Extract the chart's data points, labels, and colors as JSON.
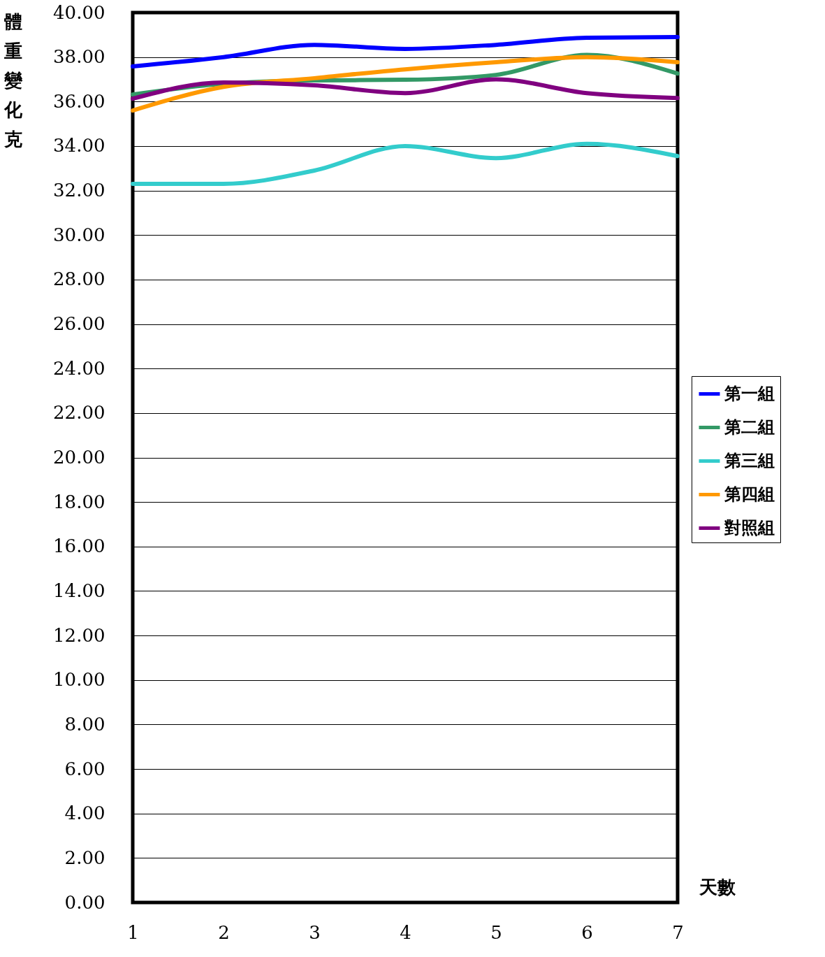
{
  "chart_data": {
    "type": "line",
    "xlabel": "天數",
    "ylabel": "體重變化克",
    "legend": "right",
    "grid": "y",
    "line_style": "solid",
    "marker": "none",
    "x": [
      1,
      2,
      3,
      4,
      5,
      6,
      7
    ],
    "xlim": [
      1,
      7
    ],
    "xticks": [
      1,
      2,
      3,
      4,
      5,
      6,
      7
    ],
    "ylim": [
      0,
      40
    ],
    "yticks": [
      {
        "value": 0,
        "label": "0.00"
      },
      {
        "value": 2,
        "label": "2.00"
      },
      {
        "value": 4,
        "label": "4.00"
      },
      {
        "value": 6,
        "label": "6.00"
      },
      {
        "value": 8,
        "label": "8.00"
      },
      {
        "value": 10,
        "label": "10.00"
      },
      {
        "value": 12,
        "label": "12.00"
      },
      {
        "value": 14,
        "label": "14.00"
      },
      {
        "value": 16,
        "label": "16.00"
      },
      {
        "value": 18,
        "label": "18.00"
      },
      {
        "value": 20,
        "label": "20.00"
      },
      {
        "value": 22,
        "label": "22.00"
      },
      {
        "value": 24,
        "label": "24.00"
      },
      {
        "value": 26,
        "label": "26.00"
      },
      {
        "value": 28,
        "label": "28.00"
      },
      {
        "value": 30,
        "label": "30.00"
      },
      {
        "value": 32,
        "label": "32.00"
      },
      {
        "value": 34,
        "label": "34.00"
      },
      {
        "value": 36,
        "label": "36.00"
      },
      {
        "value": 38,
        "label": "38.00"
      },
      {
        "value": 40,
        "label": "40.00"
      }
    ],
    "series": [
      {
        "name": "第一組",
        "color": "#0000ff",
        "values": [
          37.58,
          38.0,
          38.55,
          38.37,
          38.55,
          38.87,
          38.9
        ]
      },
      {
        "name": "第二組",
        "color": "#339966",
        "values": [
          36.32,
          36.8,
          36.95,
          36.98,
          37.2,
          38.1,
          37.26
        ]
      },
      {
        "name": "第三組",
        "color": "#33cccc",
        "values": [
          32.3,
          32.3,
          32.9,
          34.0,
          33.46,
          34.1,
          33.55
        ]
      },
      {
        "name": "第四組",
        "color": "#ff9900",
        "values": [
          35.6,
          36.66,
          37.05,
          37.45,
          37.77,
          38.0,
          37.77
        ]
      },
      {
        "name": "對照組",
        "color": "#800080",
        "values": [
          36.13,
          36.86,
          36.73,
          36.38,
          37.0,
          36.38,
          36.16
        ]
      }
    ]
  }
}
